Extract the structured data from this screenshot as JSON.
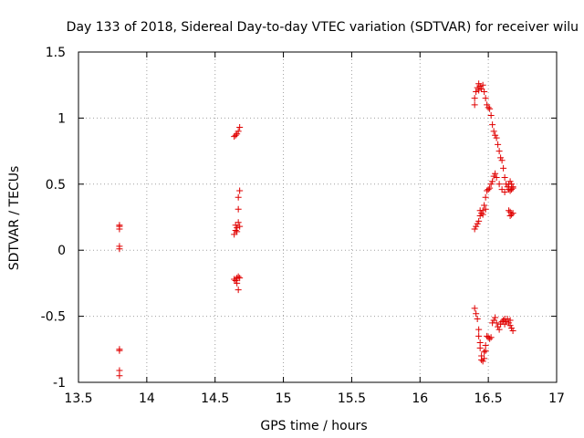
{
  "chart_data": {
    "type": "scatter",
    "title": "Day 133 of 2018, Sidereal Day-to-day VTEC variation (SDTVAR) for receiver wilu",
    "xlabel": "GPS time / hours",
    "ylabel": "SDTVAR / TECUs",
    "xlim": [
      13.5,
      17
    ],
    "ylim": [
      -1,
      1.5
    ],
    "xticks": [
      13.5,
      14,
      14.5,
      15,
      15.5,
      16,
      16.5,
      17
    ],
    "yticks": [
      -1,
      -0.5,
      0,
      0.5,
      1,
      1.5
    ],
    "xtick_labels": [
      "13.5",
      "14",
      "14.5",
      "15",
      "15.5",
      "16",
      "16.5",
      "17"
    ],
    "ytick_labels": [
      "-1",
      "-0.5",
      "0",
      "0.5",
      "1",
      "1.5"
    ],
    "grid": true,
    "marker": "+",
    "color": "#e00000",
    "series": [
      {
        "name": "SDTVAR",
        "points": [
          [
            13.8,
            0.16
          ],
          [
            13.8,
            0.18
          ],
          [
            13.8,
            0.19
          ],
          [
            13.8,
            0.01
          ],
          [
            13.8,
            0.03
          ],
          [
            13.8,
            -0.75
          ],
          [
            13.8,
            -0.76
          ],
          [
            13.8,
            -0.91
          ],
          [
            13.8,
            -0.95
          ],
          [
            14.64,
            0.86
          ],
          [
            14.65,
            0.87
          ],
          [
            14.66,
            0.88
          ],
          [
            14.67,
            0.9
          ],
          [
            14.68,
            0.93
          ],
          [
            14.68,
            0.45
          ],
          [
            14.67,
            0.4
          ],
          [
            14.67,
            0.31
          ],
          [
            14.65,
            0.19
          ],
          [
            14.66,
            0.17
          ],
          [
            14.67,
            0.21
          ],
          [
            14.68,
            0.18
          ],
          [
            14.64,
            0.12
          ],
          [
            14.65,
            0.15
          ],
          [
            14.66,
            0.14
          ],
          [
            14.64,
            -0.22
          ],
          [
            14.65,
            -0.23
          ],
          [
            14.66,
            -0.21
          ],
          [
            14.67,
            -0.2
          ],
          [
            14.68,
            -0.21
          ],
          [
            14.66,
            -0.25
          ],
          [
            14.67,
            -0.3
          ],
          [
            16.4,
            1.1
          ],
          [
            16.4,
            1.15
          ],
          [
            16.41,
            1.2
          ],
          [
            16.42,
            1.23
          ],
          [
            16.43,
            1.21
          ],
          [
            16.44,
            1.24
          ],
          [
            16.45,
            1.22
          ],
          [
            16.46,
            1.25
          ],
          [
            16.43,
            1.26
          ],
          [
            16.47,
            1.2
          ],
          [
            16.48,
            1.15
          ],
          [
            16.49,
            1.1
          ],
          [
            16.5,
            1.08
          ],
          [
            16.51,
            1.07
          ],
          [
            16.52,
            1.02
          ],
          [
            16.53,
            0.95
          ],
          [
            16.54,
            0.9
          ],
          [
            16.55,
            0.87
          ],
          [
            16.56,
            0.85
          ],
          [
            16.57,
            0.8
          ],
          [
            16.58,
            0.75
          ],
          [
            16.59,
            0.7
          ],
          [
            16.6,
            0.68
          ],
          [
            16.61,
            0.62
          ],
          [
            16.62,
            0.55
          ],
          [
            16.63,
            0.5
          ],
          [
            16.64,
            0.48
          ],
          [
            16.65,
            0.46
          ],
          [
            16.66,
            0.45
          ],
          [
            16.67,
            0.46
          ],
          [
            16.68,
            0.48
          ],
          [
            16.62,
            0.44
          ],
          [
            16.6,
            0.46
          ],
          [
            16.58,
            0.5
          ],
          [
            16.56,
            0.55
          ],
          [
            16.55,
            0.58
          ],
          [
            16.54,
            0.56
          ],
          [
            16.53,
            0.52
          ],
          [
            16.52,
            0.5
          ],
          [
            16.51,
            0.47
          ],
          [
            16.5,
            0.46
          ],
          [
            16.49,
            0.45
          ],
          [
            16.48,
            0.4
          ],
          [
            16.47,
            0.34
          ],
          [
            16.46,
            0.3
          ],
          [
            16.45,
            0.28
          ],
          [
            16.44,
            0.26
          ],
          [
            16.43,
            0.22
          ],
          [
            16.42,
            0.2
          ],
          [
            16.41,
            0.18
          ],
          [
            16.4,
            0.16
          ],
          [
            16.44,
            0.3
          ],
          [
            16.46,
            0.27
          ],
          [
            16.48,
            0.31
          ],
          [
            16.65,
            0.5
          ],
          [
            16.66,
            0.52
          ],
          [
            16.67,
            0.5
          ],
          [
            16.68,
            0.47
          ],
          [
            16.65,
            0.3
          ],
          [
            16.66,
            0.29
          ],
          [
            16.67,
            0.27
          ],
          [
            16.68,
            0.28
          ],
          [
            16.66,
            0.26
          ],
          [
            16.4,
            -0.44
          ],
          [
            16.41,
            -0.48
          ],
          [
            16.42,
            -0.52
          ],
          [
            16.43,
            -0.6
          ],
          [
            16.43,
            -0.65
          ],
          [
            16.44,
            -0.7
          ],
          [
            16.44,
            -0.74
          ],
          [
            16.45,
            -0.8
          ],
          [
            16.45,
            -0.83
          ],
          [
            16.46,
            -0.84
          ],
          [
            16.47,
            -0.82
          ],
          [
            16.47,
            -0.77
          ],
          [
            16.48,
            -0.76
          ],
          [
            16.48,
            -0.72
          ],
          [
            16.49,
            -0.65
          ],
          [
            16.5,
            -0.66
          ],
          [
            16.51,
            -0.67
          ],
          [
            16.52,
            -0.66
          ],
          [
            16.53,
            -0.55
          ],
          [
            16.54,
            -0.53
          ],
          [
            16.55,
            -0.51
          ],
          [
            16.56,
            -0.55
          ],
          [
            16.57,
            -0.58
          ],
          [
            16.58,
            -0.6
          ],
          [
            16.59,
            -0.56
          ],
          [
            16.6,
            -0.54
          ],
          [
            16.61,
            -0.53
          ],
          [
            16.62,
            -0.52
          ],
          [
            16.63,
            -0.54
          ],
          [
            16.64,
            -0.52
          ],
          [
            16.65,
            -0.55
          ],
          [
            16.66,
            -0.57
          ],
          [
            16.67,
            -0.59
          ],
          [
            16.68,
            -0.61
          ],
          [
            16.66,
            -0.53
          ],
          [
            16.62,
            -0.56
          ]
        ]
      }
    ]
  }
}
